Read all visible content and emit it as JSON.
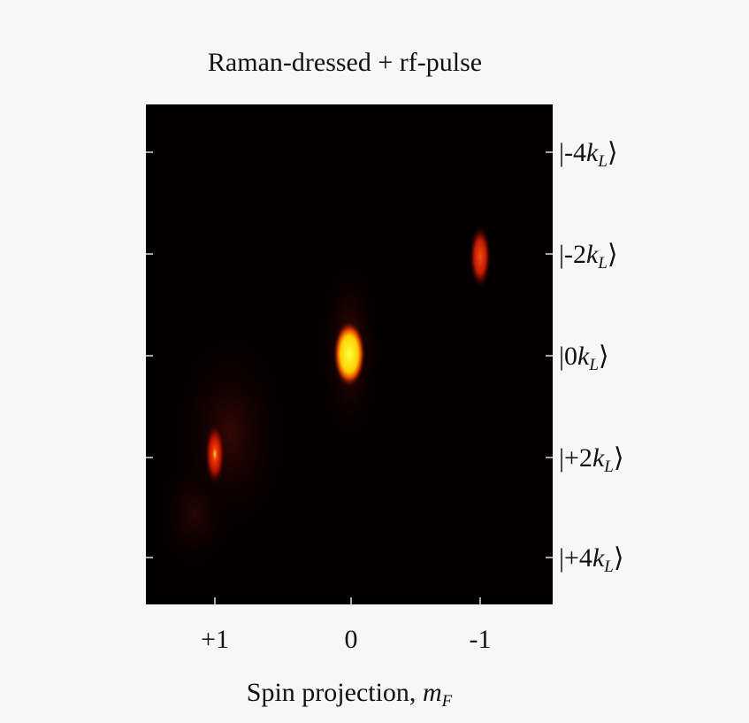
{
  "figure": {
    "title": "Raman-dressed + rf-pulse",
    "x_ticks": [
      "+1",
      "0",
      "-1"
    ],
    "x_label": {
      "text": "Spin projection, ",
      "var": "m",
      "sub": "F"
    },
    "y_ticks": [
      {
        "open": "|-4",
        "var": "k",
        "sub": "L",
        "close": "⟩"
      },
      {
        "open": "|-2",
        "var": "k",
        "sub": "L",
        "close": "⟩"
      },
      {
        "open": "|0",
        "var": "k",
        "sub": "L",
        "close": "⟩"
      },
      {
        "open": "|+2",
        "var": "k",
        "sub": "L",
        "close": "⟩"
      },
      {
        "open": "|+4",
        "var": "k",
        "sub": "L",
        "close": "⟩"
      }
    ]
  }
}
